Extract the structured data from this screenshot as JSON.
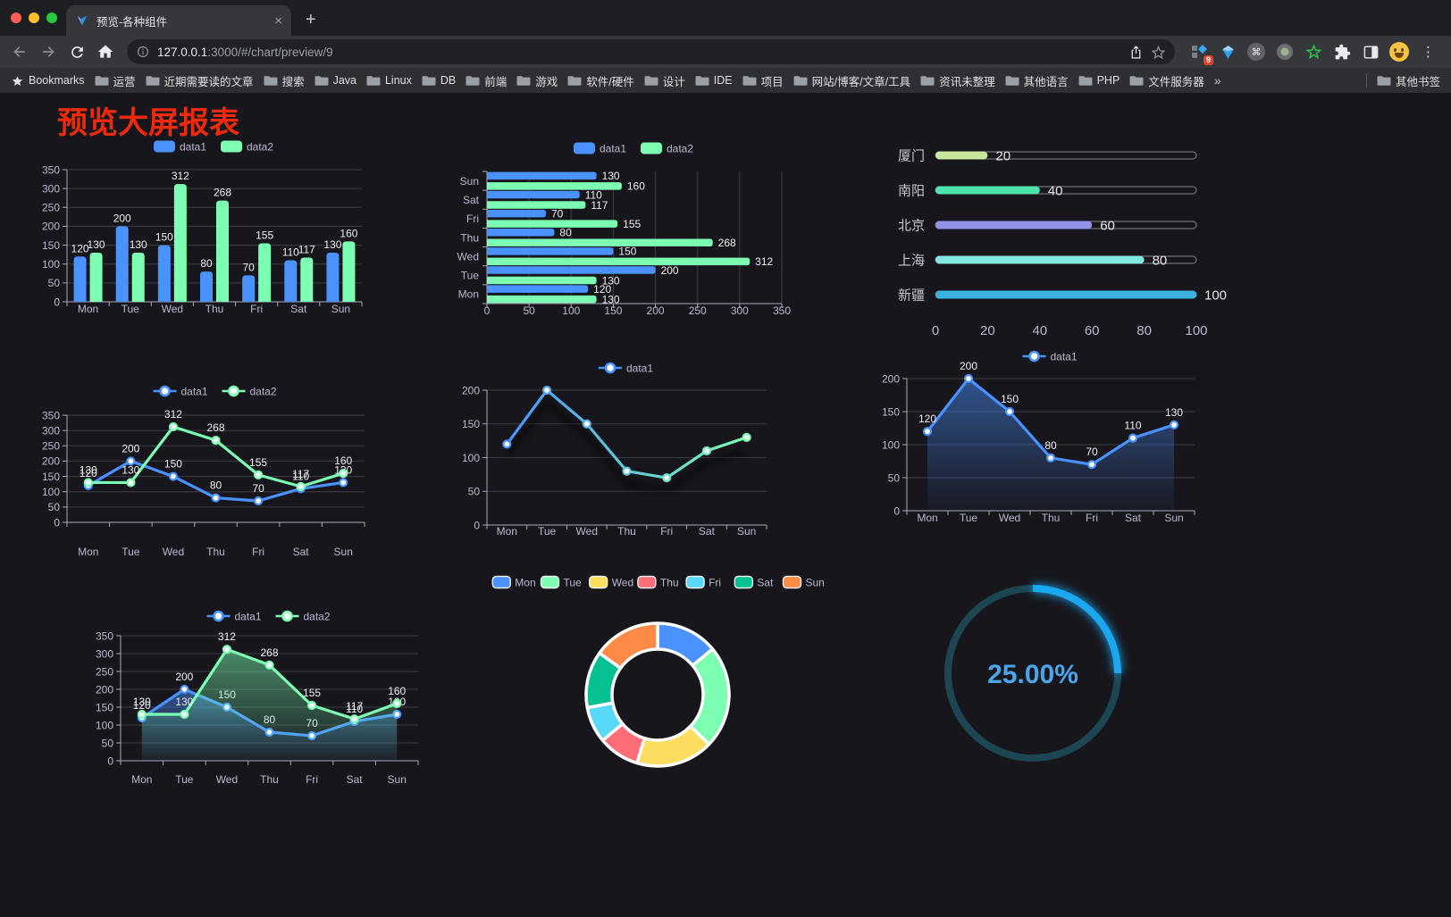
{
  "browser": {
    "tab_title": "预览-各种组件",
    "url_host": "127.0.0.1",
    "url_rest": ":3000/#/chart/preview/9",
    "extension_badge": "9",
    "bookmarks_label": "Bookmarks",
    "bookmarks": [
      "运营",
      "近期需要读的文章",
      "搜索",
      "Java",
      "Linux",
      "DB",
      "前端",
      "游戏",
      "软件/硬件",
      "设计",
      "IDE",
      "项目",
      "网站/博客/文章/工具",
      "资讯未整理",
      "其他语言",
      "PHP",
      "文件服务器"
    ],
    "other_bookmarks": "其他书签"
  },
  "icons": {
    "close_glyph": "×",
    "new_tab_glyph": "+",
    "overflow_glyph": "»",
    "kebab_glyph": "⋮",
    "cmd_glyph": "⌘"
  },
  "page": {
    "title": "预览大屏报表"
  },
  "chart_data": [
    {
      "id": "grouped-bar",
      "type": "bar",
      "legend_position": "top",
      "grid": true,
      "categories": [
        "Mon",
        "Tue",
        "Wed",
        "Thu",
        "Fri",
        "Sat",
        "Sun"
      ],
      "series": [
        {
          "name": "data1",
          "color": "#4992ff",
          "values": [
            120,
            200,
            150,
            80,
            70,
            110,
            130
          ]
        },
        {
          "name": "data2",
          "color": "#7cffb2",
          "values": [
            130,
            130,
            312,
            268,
            155,
            117,
            160
          ]
        }
      ],
      "ylim": [
        0,
        350
      ],
      "ystep": 50,
      "labels": true
    },
    {
      "id": "grouped-horizontal-bar",
      "type": "hbar",
      "legend_position": "top",
      "grid": true,
      "categories": [
        "Mon",
        "Tue",
        "Wed",
        "Thu",
        "Fri",
        "Sat",
        "Sun"
      ],
      "series": [
        {
          "name": "data1",
          "color": "#4992ff",
          "values": [
            120,
            200,
            150,
            80,
            70,
            110,
            130
          ]
        },
        {
          "name": "data2",
          "color": "#7cffb2",
          "values": [
            130,
            130,
            312,
            268,
            155,
            117,
            160
          ]
        }
      ],
      "xlim": [
        0,
        350
      ],
      "xstep": 50,
      "labels": true
    },
    {
      "id": "city-progress-bars",
      "type": "progress",
      "items": [
        {
          "label": "厦门",
          "value": 20,
          "color": "#c6e79c"
        },
        {
          "label": "南阳",
          "value": 40,
          "color": "#4fe3ad"
        },
        {
          "label": "北京",
          "value": 60,
          "color": "#9193e6"
        },
        {
          "label": "上海",
          "value": 80,
          "color": "#84e7e1"
        },
        {
          "label": "新疆",
          "value": 100,
          "color": "#3ab3e2"
        }
      ],
      "xlim": [
        0,
        100
      ],
      "xticks": [
        0,
        20,
        40,
        60,
        80,
        100
      ]
    },
    {
      "id": "multi-line",
      "type": "line",
      "legend_position": "top",
      "grid": true,
      "categories": [
        "Mon",
        "Tue",
        "Wed",
        "Thu",
        "Fri",
        "Sat",
        "Sun"
      ],
      "series": [
        {
          "name": "data1",
          "color": "#4992ff",
          "values": [
            120,
            200,
            150,
            80,
            70,
            110,
            130
          ]
        },
        {
          "name": "data2",
          "color": "#7cffb2",
          "values": [
            130,
            130,
            312,
            268,
            155,
            117,
            160
          ]
        }
      ],
      "ylim": [
        0,
        350
      ],
      "ystep": 50,
      "labels": true
    },
    {
      "id": "gradient-line",
      "type": "line",
      "legend_position": "top",
      "grid": true,
      "categories": [
        "Mon",
        "Tue",
        "Wed",
        "Thu",
        "Fri",
        "Sat",
        "Sun"
      ],
      "series": [
        {
          "name": "data1",
          "color": "#4992ff",
          "color_gradient": [
            "#4992ff",
            "#7cffb2"
          ],
          "values": [
            120,
            200,
            150,
            80,
            70,
            110,
            130
          ],
          "shadow": true
        }
      ],
      "ylim": [
        0,
        200
      ],
      "ystep": 50,
      "labels": false
    },
    {
      "id": "area-line",
      "type": "line",
      "legend_position": "top",
      "grid": true,
      "categories": [
        "Mon",
        "Tue",
        "Wed",
        "Thu",
        "Fri",
        "Sat",
        "Sun"
      ],
      "series": [
        {
          "name": "data1",
          "color": "#4992ff",
          "values": [
            120,
            200,
            150,
            80,
            70,
            110,
            130
          ],
          "area": true
        }
      ],
      "ylim": [
        0,
        200
      ],
      "ystep": 50,
      "labels": true
    },
    {
      "id": "multi-line-area",
      "type": "line",
      "legend_position": "top",
      "grid": true,
      "categories": [
        "Mon",
        "Tue",
        "Wed",
        "Thu",
        "Fri",
        "Sat",
        "Sun"
      ],
      "series": [
        {
          "name": "data1",
          "color": "#4992ff",
          "values": [
            120,
            200,
            150,
            80,
            70,
            110,
            130
          ],
          "area": true
        },
        {
          "name": "data2",
          "color": "#7cffb2",
          "values": [
            130,
            130,
            312,
            268,
            155,
            117,
            160
          ],
          "area": true
        }
      ],
      "ylim": [
        0,
        350
      ],
      "ystep": 50,
      "labels": true
    },
    {
      "id": "week-donut",
      "type": "pie",
      "legend_position": "top",
      "inner_radius_ratio": 0.64,
      "items": [
        {
          "label": "Mon",
          "value": 120,
          "color": "#4992ff"
        },
        {
          "label": "Tue",
          "value": 200,
          "color": "#7cffb2"
        },
        {
          "label": "Wed",
          "value": 150,
          "color": "#fddd60"
        },
        {
          "label": "Thu",
          "value": 80,
          "color": "#ff6e76"
        },
        {
          "label": "Fri",
          "value": 70,
          "color": "#58d9f9"
        },
        {
          "label": "Sat",
          "value": 110,
          "color": "#05c091"
        },
        {
          "label": "Sun",
          "value": 130,
          "color": "#ff8a45"
        }
      ]
    },
    {
      "id": "percent-gauge",
      "type": "gauge",
      "value": 25,
      "label": "25.00%",
      "color": "#1aa7f0",
      "track_color": "#1d4653",
      "text_color": "#4aa6ea"
    }
  ]
}
